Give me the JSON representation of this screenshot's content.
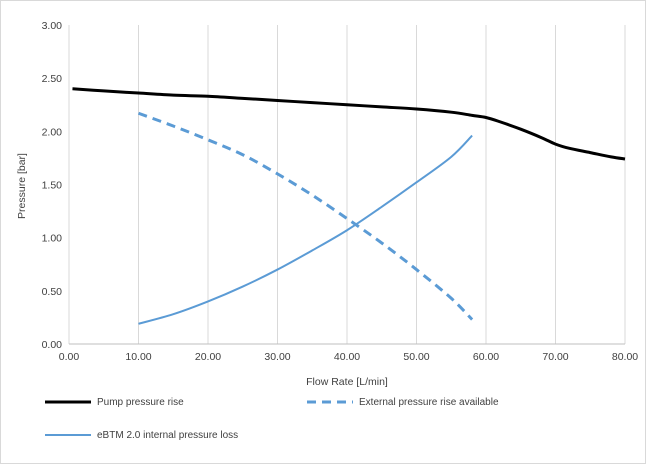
{
  "chart_data": {
    "type": "line",
    "xlabel": "Flow Rate [L/min]",
    "ylabel": "Pressure [bar]",
    "xlim": [
      0,
      80
    ],
    "ylim": [
      0,
      3
    ],
    "x_ticks": [
      "0.00",
      "10.00",
      "20.00",
      "30.00",
      "40.00",
      "50.00",
      "60.00",
      "70.00",
      "80.00"
    ],
    "y_ticks": [
      "0.00",
      "0.50",
      "1.00",
      "1.50",
      "2.00",
      "2.50",
      "3.00"
    ],
    "grid": "vertical",
    "legend_position": "bottom",
    "series": [
      {
        "name": "Pump pressure rise",
        "color": "#000000",
        "style": "solid",
        "x": [
          0.5,
          5,
          10,
          15,
          20,
          25,
          30,
          35,
          40,
          45,
          50,
          55,
          58,
          60,
          62,
          65,
          68,
          70,
          72,
          75,
          78,
          80
        ],
        "y": [
          2.4,
          2.38,
          2.36,
          2.34,
          2.33,
          2.31,
          2.29,
          2.27,
          2.25,
          2.23,
          2.21,
          2.18,
          2.15,
          2.13,
          2.09,
          2.02,
          1.94,
          1.88,
          1.84,
          1.8,
          1.76,
          1.74
        ]
      },
      {
        "name": "External pressure rise available",
        "color": "#5b9bd5",
        "style": "dashed",
        "x": [
          10,
          15,
          20,
          25,
          30,
          35,
          40,
          45,
          50,
          55,
          58
        ],
        "y": [
          2.17,
          2.05,
          1.92,
          1.78,
          1.6,
          1.4,
          1.18,
          0.95,
          0.7,
          0.43,
          0.23
        ]
      },
      {
        "name": "eBTM 2.0 internal pressure loss",
        "color": "#5b9bd5",
        "style": "solid",
        "x": [
          10,
          15,
          20,
          25,
          30,
          35,
          40,
          45,
          50,
          55,
          58
        ],
        "y": [
          0.19,
          0.28,
          0.4,
          0.54,
          0.7,
          0.88,
          1.07,
          1.29,
          1.52,
          1.76,
          1.96
        ]
      }
    ]
  }
}
